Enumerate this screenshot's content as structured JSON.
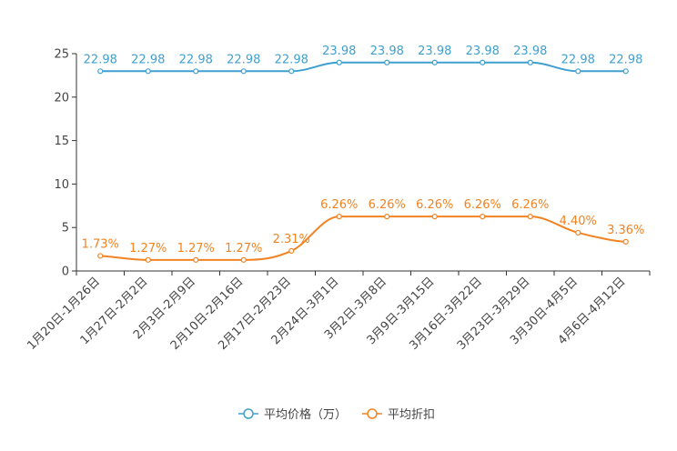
{
  "chart_data": {
    "type": "line",
    "title": "",
    "xlabel": "",
    "ylabel": "",
    "ylim": [
      0,
      25
    ],
    "yticks": [
      0,
      5,
      10,
      15,
      20,
      25
    ],
    "grid": false,
    "legend_position": "bottom-center",
    "categories": [
      "1月20日-1月26日",
      "1月27日-2月2日",
      "2月3日-2月9日",
      "2月10日-2月16日",
      "2月17日-2月23日",
      "2月24日-3月1日",
      "3月2日-3月8日",
      "3月9日-3月15日",
      "3月16日-3月22日",
      "3月23日-3月29日",
      "3月30日-4月5日",
      "4月6日-4月12日"
    ],
    "series": [
      {
        "name": "平均价格（万）",
        "color": "#3fa0d0",
        "values": [
          22.98,
          22.98,
          22.98,
          22.98,
          22.98,
          23.98,
          23.98,
          23.98,
          23.98,
          23.98,
          22.98,
          22.98
        ],
        "labels": [
          "22.98",
          "22.98",
          "22.98",
          "22.98",
          "22.98",
          "23.98",
          "23.98",
          "23.98",
          "23.98",
          "23.98",
          "22.98",
          "22.98"
        ]
      },
      {
        "name": "平均折扣",
        "color": "#f28322",
        "values": [
          1.73,
          1.27,
          1.27,
          1.27,
          2.31,
          6.26,
          6.26,
          6.26,
          6.26,
          6.26,
          4.4,
          3.36
        ],
        "labels": [
          "1.73%",
          "1.27%",
          "1.27%",
          "1.27%",
          "2.31%",
          "6.26%",
          "6.26%",
          "6.26%",
          "6.26%",
          "6.26%",
          "4.40%",
          "3.36%"
        ]
      }
    ]
  }
}
